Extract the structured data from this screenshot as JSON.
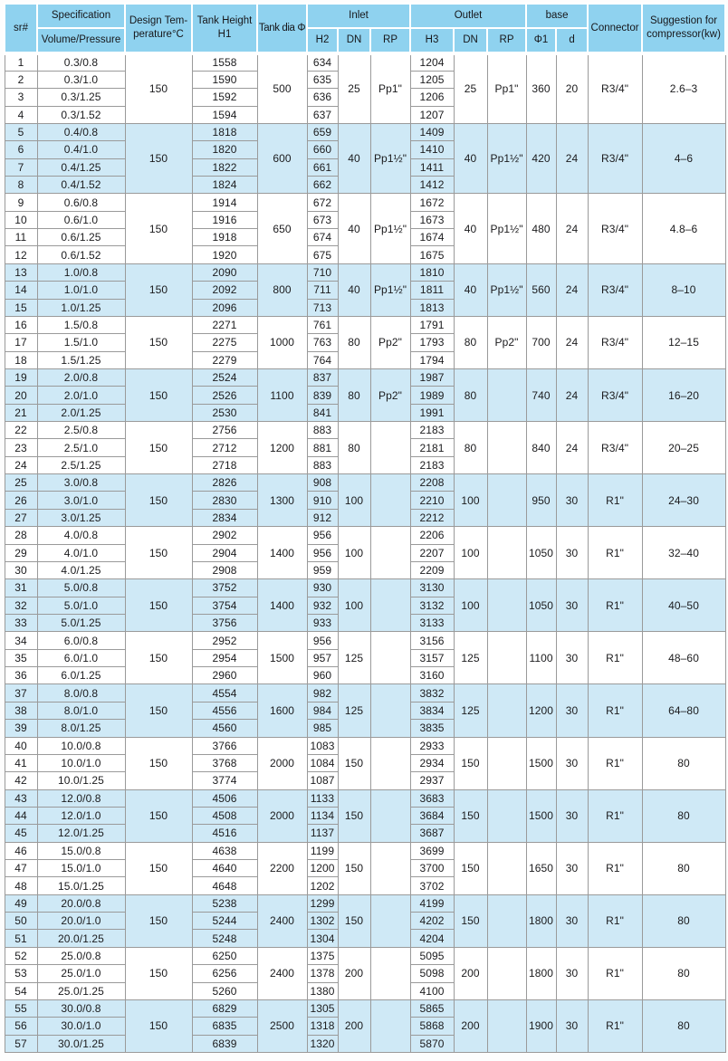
{
  "table": {
    "header": {
      "sr": "sr#",
      "specification": "Specification",
      "volume_pressure": "Volume/Pressure",
      "design_temperature": "Design Tem-\nperature°C",
      "tank_height": "Tank Height\nH1",
      "tank_dia": "Tank dia Φ",
      "inlet": "Inlet",
      "outlet": "Outlet",
      "base": "base",
      "h2": "H2",
      "dn_in": "DN",
      "rp_in": "RP",
      "h3": "H3",
      "dn_out": "DN",
      "rp_out": "RP",
      "phi1": "Φ1",
      "d": "d",
      "connector": "Connector",
      "suggestion": "Suggestion for\ncompressor(kw)"
    },
    "groups": [
      {
        "temp": "150",
        "dia": "500",
        "dn_in": "25",
        "rp_in": "Pp1\"",
        "dn_out": "25",
        "rp_out": "Pp1\"",
        "phi1": "360",
        "d": "20",
        "connector": "R3/4\"",
        "suggestion": "2.6–3",
        "rows": [
          [
            "1",
            "0.3/0.8",
            "1558",
            "634",
            "1204"
          ],
          [
            "2",
            "0.3/1.0",
            "1590",
            "635",
            "1205"
          ],
          [
            "3",
            "0.3/1.25",
            "1592",
            "636",
            "1206"
          ],
          [
            "4",
            "0.3/1.52",
            "1594",
            "637",
            "1207"
          ]
        ]
      },
      {
        "temp": "150",
        "dia": "600",
        "dn_in": "40",
        "rp_in": "Pp1½\"",
        "dn_out": "40",
        "rp_out": "Pp1½\"",
        "phi1": "420",
        "d": "24",
        "connector": "R3/4\"",
        "suggestion": "4–6",
        "rows": [
          [
            "5",
            "0.4/0.8",
            "1818",
            "659",
            "1409"
          ],
          [
            "6",
            "0.4/1.0",
            "1820",
            "660",
            "1410"
          ],
          [
            "7",
            "0.4/1.25",
            "1822",
            "661",
            "1411"
          ],
          [
            "8",
            "0.4/1.52",
            "1824",
            "662",
            "1412"
          ]
        ]
      },
      {
        "temp": "150",
        "dia": "650",
        "dn_in": "40",
        "rp_in": "Pp1½\"",
        "dn_out": "40",
        "rp_out": "Pp1½\"",
        "phi1": "480",
        "d": "24",
        "connector": "R3/4\"",
        "suggestion": "4.8–6",
        "rows": [
          [
            "9",
            "0.6/0.8",
            "1914",
            "672",
            "1672"
          ],
          [
            "10",
            "0.6/1.0",
            "1916",
            "673",
            "1673"
          ],
          [
            "11",
            "0.6/1.25",
            "1918",
            "674",
            "1674"
          ],
          [
            "12",
            "0.6/1.52",
            "1920",
            "675",
            "1675"
          ]
        ]
      },
      {
        "temp": "150",
        "dia": "800",
        "dn_in": "40",
        "rp_in": "Pp1½\"",
        "dn_out": "40",
        "rp_out": "Pp1½\"",
        "phi1": "560",
        "d": "24",
        "connector": "R3/4\"",
        "suggestion": "8–10",
        "rows": [
          [
            "13",
            "1.0/0.8",
            "2090",
            "710",
            "1810"
          ],
          [
            "14",
            "1.0/1.0",
            "2092",
            "711",
            "1811"
          ],
          [
            "15",
            "1.0/1.25",
            "2096",
            "713",
            "1813"
          ]
        ]
      },
      {
        "temp": "150",
        "dia": "1000",
        "dn_in": "80",
        "rp_in": "Pp2\"",
        "dn_out": "80",
        "rp_out": "Pp2\"",
        "phi1": "700",
        "d": "24",
        "connector": "R3/4\"",
        "suggestion": "12–15",
        "rows": [
          [
            "16",
            "1.5/0.8",
            "2271",
            "761",
            "1791"
          ],
          [
            "17",
            "1.5/1.0",
            "2275",
            "763",
            "1793"
          ],
          [
            "18",
            "1.5/1.25",
            "2279",
            "764",
            "1794"
          ]
        ]
      },
      {
        "temp": "150",
        "dia": "1100",
        "dn_in": "80",
        "rp_in": "Pp2\"",
        "dn_out": "80",
        "rp_out": "",
        "phi1": "740",
        "d": "24",
        "connector": "R3/4\"",
        "suggestion": "16–20",
        "rows": [
          [
            "19",
            "2.0/0.8",
            "2524",
            "837",
            "1987"
          ],
          [
            "20",
            "2.0/1.0",
            "2526",
            "839",
            "1989"
          ],
          [
            "21",
            "2.0/1.25",
            "2530",
            "841",
            "1991"
          ]
        ]
      },
      {
        "temp": "150",
        "dia": "1200",
        "dn_in": "80",
        "rp_in": "",
        "dn_out": "80",
        "rp_out": "",
        "phi1": "840",
        "d": "24",
        "connector": "R3/4\"",
        "suggestion": "20–25",
        "rows": [
          [
            "22",
            "2.5/0.8",
            "2756",
            "883",
            "2183"
          ],
          [
            "23",
            "2.5/1.0",
            "2712",
            "881",
            "2181"
          ],
          [
            "24",
            "2.5/1.25",
            "2718",
            "883",
            "2183"
          ]
        ]
      },
      {
        "temp": "150",
        "dia": "1300",
        "dn_in": "100",
        "rp_in": "",
        "dn_out": "100",
        "rp_out": "",
        "phi1": "950",
        "d": "30",
        "connector": "R1\"",
        "suggestion": "24–30",
        "rows": [
          [
            "25",
            "3.0/0.8",
            "2826",
            "908",
            "2208"
          ],
          [
            "26",
            "3.0/1.0",
            "2830",
            "910",
            "2210"
          ],
          [
            "27",
            "3.0/1.25",
            "2834",
            "912",
            "2212"
          ]
        ]
      },
      {
        "temp": "150",
        "dia": "1400",
        "dn_in": "100",
        "rp_in": "",
        "dn_out": "100",
        "rp_out": "",
        "phi1": "1050",
        "d": "30",
        "connector": "R1\"",
        "suggestion": "32–40",
        "rows": [
          [
            "28",
            "4.0/0.8",
            "2902",
            "956",
            "2206"
          ],
          [
            "29",
            "4.0/1.0",
            "2904",
            "956",
            "2207"
          ],
          [
            "30",
            "4.0/1.25",
            "2908",
            "959",
            "2209"
          ]
        ]
      },
      {
        "temp": "150",
        "dia": "1400",
        "dn_in": "100",
        "rp_in": "",
        "dn_out": "100",
        "rp_out": "",
        "phi1": "1050",
        "d": "30",
        "connector": "R1\"",
        "suggestion": "40–50",
        "rows": [
          [
            "31",
            "5.0/0.8",
            "3752",
            "930",
            "3130"
          ],
          [
            "32",
            "5.0/1.0",
            "3754",
            "932",
            "3132"
          ],
          [
            "33",
            "5.0/1.25",
            "3756",
            "933",
            "3133"
          ]
        ]
      },
      {
        "temp": "150",
        "dia": "1500",
        "dn_in": "125",
        "rp_in": "",
        "dn_out": "125",
        "rp_out": "",
        "phi1": "1100",
        "d": "30",
        "connector": "R1\"",
        "suggestion": "48–60",
        "rows": [
          [
            "34",
            "6.0/0.8",
            "2952",
            "956",
            "3156"
          ],
          [
            "35",
            "6.0/1.0",
            "2954",
            "957",
            "3157"
          ],
          [
            "36",
            "6.0/1.25",
            "2960",
            "960",
            "3160"
          ]
        ]
      },
      {
        "temp": "150",
        "dia": "1600",
        "dn_in": "125",
        "rp_in": "",
        "dn_out": "125",
        "rp_out": "",
        "phi1": "1200",
        "d": "30",
        "connector": "R1\"",
        "suggestion": "64–80",
        "rows": [
          [
            "37",
            "8.0/0.8",
            "4554",
            "982",
            "3832"
          ],
          [
            "38",
            "8.0/1.0",
            "4556",
            "984",
            "3834"
          ],
          [
            "39",
            "8.0/1.25",
            "4560",
            "985",
            "3835"
          ]
        ]
      },
      {
        "temp": "150",
        "dia": "2000",
        "dn_in": "150",
        "rp_in": "",
        "dn_out": "150",
        "rp_out": "",
        "phi1": "1500",
        "d": "30",
        "connector": "R1\"",
        "suggestion": "80",
        "rows": [
          [
            "40",
            "10.0/0.8",
            "3766",
            "1083",
            "2933"
          ],
          [
            "41",
            "10.0/1.0",
            "3768",
            "1084",
            "2934"
          ],
          [
            "42",
            "10.0/1.25",
            "3774",
            "1087",
            "2937"
          ]
        ]
      },
      {
        "temp": "150",
        "dia": "2000",
        "dn_in": "150",
        "rp_in": "",
        "dn_out": "150",
        "rp_out": "",
        "phi1": "1500",
        "d": "30",
        "connector": "R1\"",
        "suggestion": "80",
        "rows": [
          [
            "43",
            "12.0/0.8",
            "4506",
            "1133",
            "3683"
          ],
          [
            "44",
            "12.0/1.0",
            "4508",
            "1134",
            "3684"
          ],
          [
            "45",
            "12.0/1.25",
            "4516",
            "1137",
            "3687"
          ]
        ]
      },
      {
        "temp": "150",
        "dia": "2200",
        "dn_in": "150",
        "rp_in": "",
        "dn_out": "150",
        "rp_out": "",
        "phi1": "1650",
        "d": "30",
        "connector": "R1\"",
        "suggestion": "80",
        "rows": [
          [
            "46",
            "15.0/0.8",
            "4638",
            "1199",
            "3699"
          ],
          [
            "47",
            "15.0/1.0",
            "4640",
            "1200",
            "3700"
          ],
          [
            "48",
            "15.0/1.25",
            "4648",
            "1202",
            "3702"
          ]
        ]
      },
      {
        "temp": "150",
        "dia": "2400",
        "dn_in": "150",
        "rp_in": "",
        "dn_out": "150",
        "rp_out": "",
        "phi1": "1800",
        "d": "30",
        "connector": "R1\"",
        "suggestion": "80",
        "rows": [
          [
            "49",
            "20.0/0.8",
            "5238",
            "1299",
            "4199"
          ],
          [
            "50",
            "20.0/1.0",
            "5244",
            "1302",
            "4202"
          ],
          [
            "51",
            "20.0/1.25",
            "5248",
            "1304",
            "4204"
          ]
        ]
      },
      {
        "temp": "150",
        "dia": "2400",
        "dn_in": "200",
        "rp_in": "",
        "dn_out": "200",
        "rp_out": "",
        "phi1": "1800",
        "d": "30",
        "connector": "R1\"",
        "suggestion": "80",
        "rows": [
          [
            "52",
            "25.0/0.8",
            "6250",
            "1375",
            "5095"
          ],
          [
            "53",
            "25.0/1.0",
            "6256",
            "1378",
            "5098"
          ],
          [
            "54",
            "25.0/1.25",
            "5260",
            "1380",
            "4100"
          ]
        ]
      },
      {
        "temp": "150",
        "dia": "2500",
        "dn_in": "200",
        "rp_in": "",
        "dn_out": "200",
        "rp_out": "",
        "phi1": "1900",
        "d": "30",
        "connector": "R1\"",
        "suggestion": "80",
        "rows": [
          [
            "55",
            "30.0/0.8",
            "6829",
            "1305",
            "5865"
          ],
          [
            "56",
            "30.0/1.0",
            "6835",
            "1318",
            "5868"
          ],
          [
            "57",
            "30.0/1.25",
            "6839",
            "1320",
            "5870"
          ]
        ]
      }
    ]
  },
  "colors": {
    "header_bg": "#8fd2ef",
    "band_bg": "#cfe9f6",
    "row_bg": "#ffffff",
    "grid": "#9a9a9a",
    "text": "#1b1b1d"
  }
}
